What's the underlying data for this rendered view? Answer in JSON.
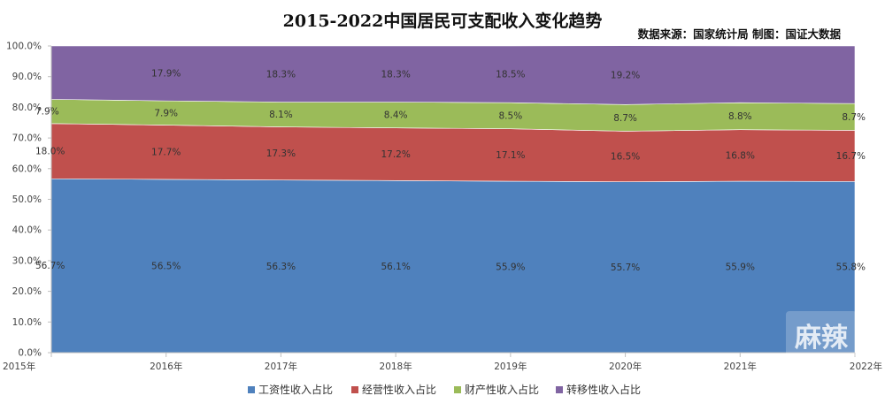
{
  "chart_data": {
    "type": "area",
    "stacked": true,
    "percent": true,
    "title": "2015-2022中国居民可支配收入变化趋势",
    "source_note": "数据来源：国家统计局  制图：国证大数据",
    "categories": [
      "2015年",
      "2016年",
      "2017年",
      "2018年",
      "2019年",
      "2020年",
      "2021年",
      "2022年"
    ],
    "ylim": [
      0,
      100
    ],
    "yticks": [
      "0.0%",
      "10.0%",
      "20.0%",
      "30.0%",
      "40.0%",
      "50.0%",
      "60.0%",
      "70.0%",
      "80.0%",
      "90.0%",
      "100.0%"
    ],
    "grid": false,
    "legend_position": "bottom",
    "series": [
      {
        "name": "工资性收入占比",
        "color": "#4f81bd",
        "values": [
          56.7,
          56.5,
          56.3,
          56.1,
          55.9,
          55.7,
          55.9,
          55.8
        ],
        "labels": [
          "56.7%",
          "56.5%",
          "56.3%",
          "56.1%",
          "55.9%",
          "55.7%",
          "55.9%",
          "55.8%"
        ]
      },
      {
        "name": "经营性收入占比",
        "color": "#c0504d",
        "values": [
          18.0,
          17.7,
          17.3,
          17.2,
          17.1,
          16.5,
          16.8,
          16.7
        ],
        "labels": [
          "18.0%",
          "17.7%",
          "17.3%",
          "17.2%",
          "17.1%",
          "16.5%",
          "16.8%",
          "16.7%"
        ]
      },
      {
        "name": "财产性收入占比",
        "color": "#9bbb59",
        "values": [
          7.9,
          7.9,
          8.1,
          8.4,
          8.5,
          8.7,
          8.8,
          8.7
        ],
        "labels": [
          "7.9%",
          "7.9%",
          "8.1%",
          "8.4%",
          "8.5%",
          "8.7%",
          "8.8%",
          "8.7%"
        ]
      },
      {
        "name": "转移性收入占比",
        "color": "#8064a2",
        "values": [
          17.4,
          17.9,
          18.3,
          18.3,
          18.5,
          19.2,
          18.5,
          18.8
        ],
        "labels": [
          "",
          "17.9%",
          "18.3%",
          "18.3%",
          "18.5%",
          "19.2%",
          "",
          ""
        ]
      }
    ],
    "watermark": "麻辣"
  }
}
